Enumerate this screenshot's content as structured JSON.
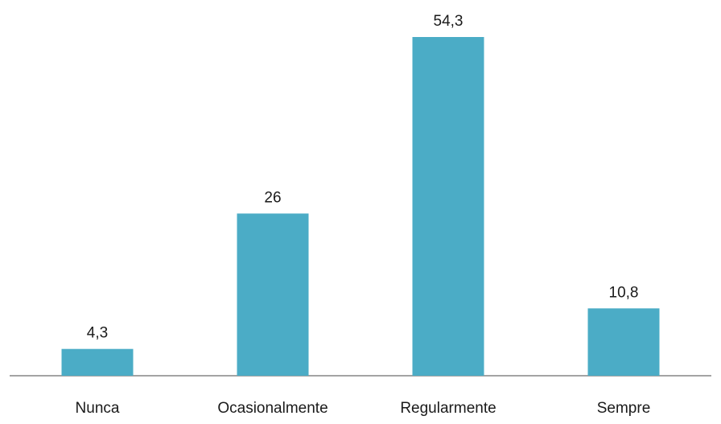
{
  "chart_data": {
    "type": "bar",
    "categories": [
      "Nunca",
      "Ocasionalmente",
      "Regularmente",
      "Sempre"
    ],
    "values": [
      4.3,
      26,
      54.3,
      10.8
    ],
    "data_labels": [
      "4,3",
      "26",
      "54,3",
      "10,8"
    ],
    "title": "",
    "xlabel": "",
    "ylabel": "",
    "ylim": [
      0,
      54.3
    ],
    "grid": false,
    "legend": "none",
    "bar_color": "#4BACC6",
    "axis_color": "#868686"
  }
}
